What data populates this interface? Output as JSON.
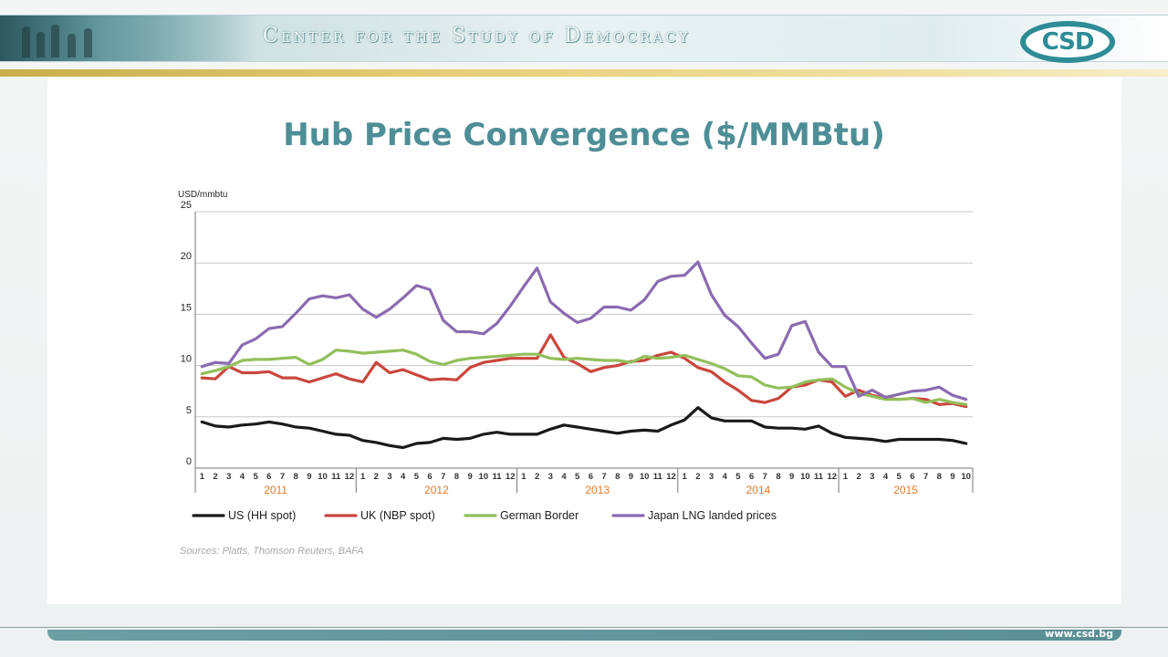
{
  "header": {
    "org_name": "Center for the Study of Democracy",
    "logo_text": "CSD"
  },
  "slide": {
    "title": "Hub Price Convergence ($/MMBtu)",
    "source": "Sources: Platts, Thomson Reuters, BAFA",
    "footer_url": "www.csd.bg"
  },
  "colors": {
    "title": "#4e8e96",
    "year_label": "#e07b2a",
    "accent": "#2e8c96"
  },
  "chart_data": {
    "type": "line",
    "ylabel": "USD/mmbtu",
    "xlabel": "",
    "ylim": [
      0,
      25
    ],
    "yticks": [
      0,
      5,
      10,
      15,
      20,
      25
    ],
    "grid": true,
    "legend_position": "bottom",
    "years": [
      {
        "label": "2011",
        "months": 12
      },
      {
        "label": "2012",
        "months": 12
      },
      {
        "label": "2013",
        "months": 12
      },
      {
        "label": "2014",
        "months": 12
      },
      {
        "label": "2015",
        "months": 10
      }
    ],
    "series": [
      {
        "name": "US (HH spot)",
        "color": "#1a1a1a",
        "values": [
          4.5,
          4.1,
          4.0,
          4.2,
          4.3,
          4.5,
          4.3,
          4.0,
          3.9,
          3.6,
          3.3,
          3.2,
          2.7,
          2.5,
          2.2,
          2.0,
          2.4,
          2.5,
          2.9,
          2.8,
          2.9,
          3.3,
          3.5,
          3.3,
          3.3,
          3.3,
          3.8,
          4.2,
          4.0,
          3.8,
          3.6,
          3.4,
          3.6,
          3.7,
          3.6,
          4.2,
          4.7,
          5.9,
          4.9,
          4.6,
          4.6,
          4.6,
          4.0,
          3.9,
          3.9,
          3.8,
          4.1,
          3.4,
          3.0,
          2.9,
          2.8,
          2.6,
          2.8,
          2.8,
          2.8,
          2.8,
          2.7,
          2.4
        ]
      },
      {
        "name": "UK (NBP spot)",
        "color": "#c9473d",
        "values": [
          8.8,
          8.7,
          9.9,
          9.3,
          9.3,
          9.4,
          8.8,
          8.8,
          8.4,
          8.8,
          9.2,
          8.7,
          8.4,
          10.3,
          9.3,
          9.6,
          9.1,
          8.6,
          8.7,
          8.6,
          9.8,
          10.3,
          10.5,
          10.7,
          10.7,
          10.7,
          13.0,
          10.8,
          10.2,
          9.4,
          9.8,
          10.0,
          10.4,
          10.5,
          11.0,
          11.3,
          10.7,
          9.8,
          9.4,
          8.4,
          7.6,
          6.6,
          6.4,
          6.8,
          7.9,
          8.1,
          8.6,
          8.4,
          7.0,
          7.6,
          7.1,
          6.8,
          6.7,
          6.8,
          6.7,
          6.2,
          6.3,
          6.0
        ]
      },
      {
        "name": "German Border",
        "color": "#92bf5a",
        "values": [
          9.2,
          9.5,
          9.9,
          10.5,
          10.6,
          10.6,
          10.7,
          10.8,
          10.1,
          10.6,
          11.5,
          11.4,
          11.2,
          11.3,
          11.4,
          11.5,
          11.1,
          10.4,
          10.1,
          10.5,
          10.7,
          10.8,
          10.9,
          11.0,
          11.1,
          11.1,
          10.7,
          10.6,
          10.7,
          10.6,
          10.5,
          10.5,
          10.3,
          10.9,
          10.7,
          10.8,
          11.0,
          10.6,
          10.2,
          9.7,
          9.0,
          8.9,
          8.1,
          7.8,
          7.9,
          8.4,
          8.6,
          8.7,
          7.9,
          7.3,
          7.0,
          6.7,
          6.7,
          6.8,
          6.4,
          6.7,
          6.4,
          6.2
        ]
      },
      {
        "name": "Japan LNG landed prices",
        "color": "#8a6bb0",
        "values": [
          9.9,
          10.3,
          10.2,
          12.0,
          12.6,
          13.6,
          13.8,
          15.1,
          16.5,
          16.8,
          16.6,
          16.9,
          15.5,
          14.7,
          15.5,
          16.6,
          17.8,
          17.4,
          14.4,
          13.3,
          13.3,
          13.1,
          14.1,
          15.8,
          17.7,
          19.5,
          16.2,
          15.1,
          14.2,
          14.6,
          15.7,
          15.7,
          15.4,
          16.4,
          18.2,
          18.7,
          18.8,
          20.1,
          16.9,
          14.9,
          13.8,
          12.2,
          10.7,
          11.1,
          13.9,
          14.3,
          11.3,
          9.9,
          9.9,
          7.0,
          7.6,
          6.9,
          7.2,
          7.5,
          7.6,
          7.9,
          7.1,
          6.7
        ]
      }
    ]
  }
}
